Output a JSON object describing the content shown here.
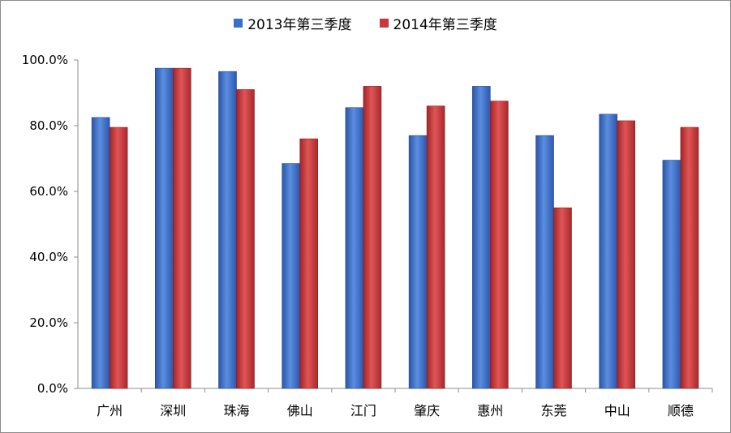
{
  "chart_data": {
    "type": "bar",
    "categories": [
      "广州",
      "深圳",
      "珠海",
      "佛山",
      "江门",
      "肇庆",
      "惠州",
      "东莞",
      "中山",
      "顺德"
    ],
    "series": [
      {
        "name": "2013年第三季度",
        "color": "#3a6fc9",
        "values": [
          82.5,
          97.5,
          96.5,
          68.5,
          85.5,
          77.0,
          92.0,
          77.0,
          83.5,
          69.5
        ]
      },
      {
        "name": "2014年第三季度",
        "color": "#c8393b",
        "values": [
          79.5,
          97.5,
          91.0,
          76.0,
          92.0,
          86.0,
          87.5,
          55.0,
          81.5,
          79.5
        ]
      }
    ],
    "ylim": [
      0,
      100
    ],
    "yticks": [
      "0.0%",
      "20.0%",
      "40.0%",
      "60.0%",
      "80.0%",
      "100.0%"
    ],
    "grid": false,
    "legend_position": "top"
  }
}
